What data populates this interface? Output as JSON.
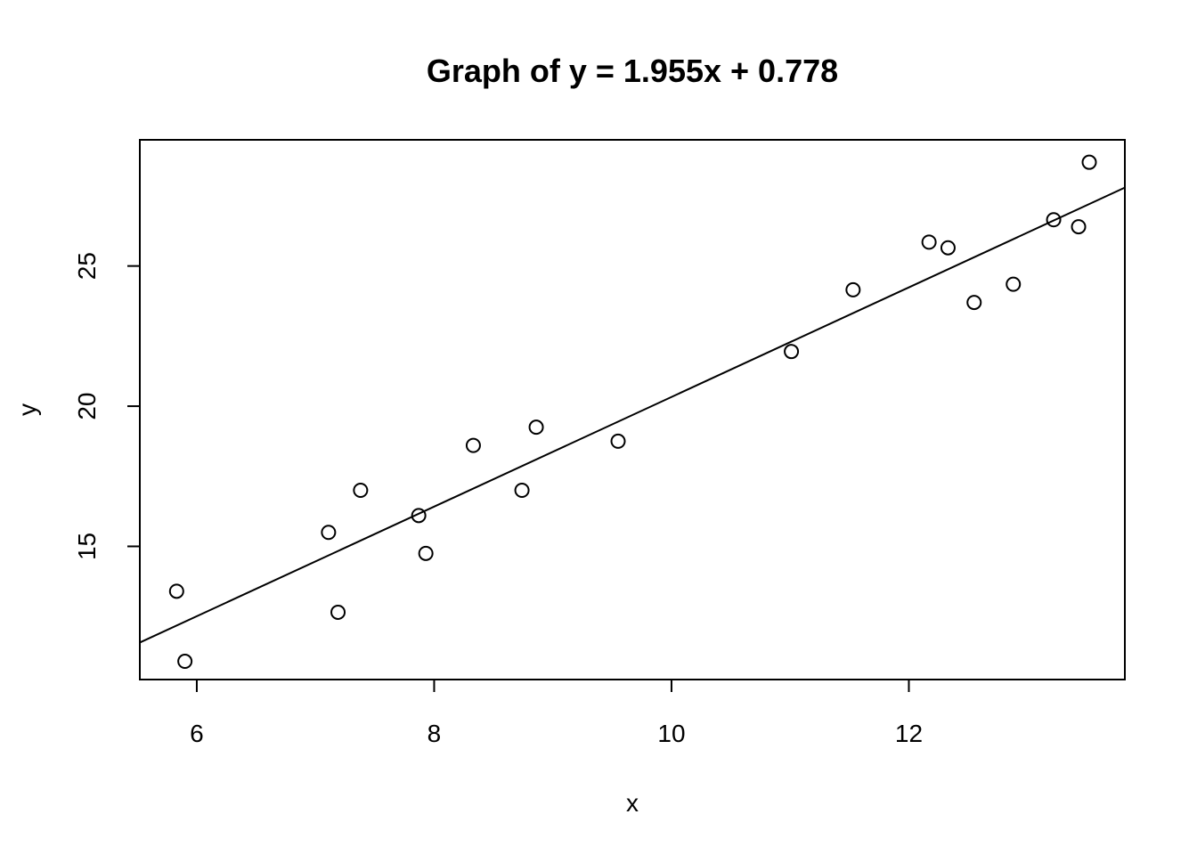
{
  "chart_data": {
    "type": "scatter",
    "title": "Graph of y = 1.955x + 0.778",
    "xlabel": "x",
    "ylabel": "y",
    "xlim": [
      5.52,
      13.82
    ],
    "ylim": [
      10.25,
      29.5
    ],
    "x_ticks": [
      6,
      8,
      10,
      12
    ],
    "y_ticks": [
      15,
      20,
      25
    ],
    "x_tick_labels": [
      "6",
      "8",
      "10",
      "12"
    ],
    "y_tick_labels": [
      "15",
      "20",
      "25"
    ],
    "grid": false,
    "legend": "none",
    "point_style": "open-circle",
    "line_color": "#000000",
    "point_color": "#000000",
    "background": "#ffffff",
    "series": [
      {
        "type": "scatter",
        "x": [
          5.83,
          5.9,
          7.11,
          7.19,
          7.38,
          7.87,
          7.93,
          8.33,
          8.74,
          8.86,
          9.55,
          11.01,
          11.53,
          12.17,
          12.33,
          12.55,
          12.88,
          13.22,
          13.43,
          13.52
        ],
        "y": [
          13.4,
          10.9,
          15.5,
          12.65,
          17.0,
          16.1,
          14.75,
          18.6,
          17.0,
          19.25,
          18.75,
          21.95,
          24.15,
          25.85,
          25.65,
          23.7,
          24.35,
          26.65,
          26.4,
          28.7
        ]
      },
      {
        "type": "line",
        "slope": 1.955,
        "intercept": 0.778
      }
    ]
  }
}
